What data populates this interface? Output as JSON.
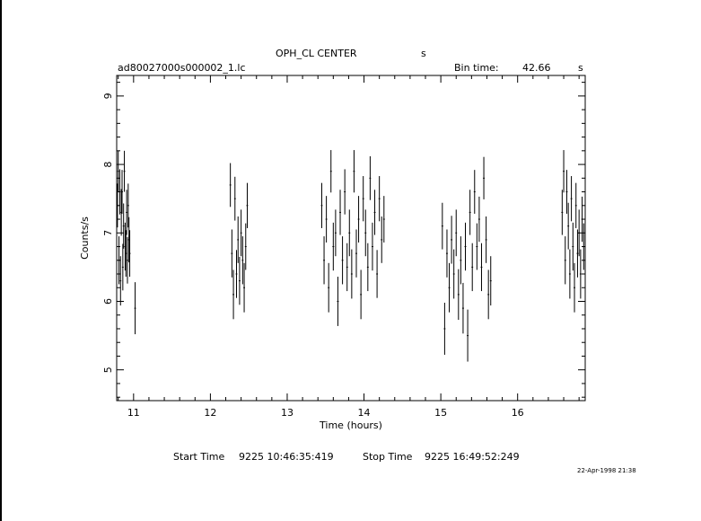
{
  "header": {
    "title_text": "OPH_CL CENTER",
    "title_suffix": "s",
    "file_name": "ad80027000s000002_1.lc",
    "bin_label": "Bin time:",
    "bin_value": "42.66",
    "bin_unit": "s"
  },
  "footer": {
    "start_label": "Start Time",
    "start_value": "9225  10:46:35:419",
    "stop_label": "Stop Time",
    "stop_value": "9225  16:49:52:249",
    "timestamp": "22-Apr-1998 21:38"
  },
  "colors": {
    "ink": "#000000",
    "background": "#ffffff"
  },
  "chart_data": {
    "type": "scatter",
    "xlabel": "Time (hours)",
    "ylabel": "Counts/s",
    "xlim": [
      10.78,
      16.88
    ],
    "ylim": [
      4.55,
      9.3
    ],
    "xticks": [
      11,
      12,
      13,
      14,
      15,
      16
    ],
    "yticks": [
      5,
      6,
      7,
      8,
      9
    ],
    "grid": false,
    "error_bars": true,
    "segments": [
      {
        "x": [
          10.79,
          10.8,
          10.81,
          10.82,
          10.83,
          10.84,
          10.85,
          10.86,
          10.87,
          10.88,
          10.89,
          10.9,
          10.91,
          10.92,
          10.93,
          10.94,
          10.95,
          11.02
        ],
        "y": [
          7.4,
          7.9,
          6.6,
          7.6,
          6.3,
          7.3,
          7.6,
          6.5,
          7.1,
          7.9,
          6.8,
          6.7,
          7.3,
          6.6,
          7.4,
          6.9,
          6.7,
          5.9
        ],
        "err": [
          0.32,
          0.3,
          0.35,
          0.33,
          0.36,
          0.34,
          0.32,
          0.34,
          0.33,
          0.3,
          0.35,
          0.34,
          0.33,
          0.34,
          0.32,
          0.33,
          0.34,
          0.38
        ]
      },
      {
        "x": [
          12.26,
          12.28,
          12.3,
          12.32,
          12.34,
          12.36,
          12.38,
          12.4,
          12.42,
          12.44,
          12.46,
          12.48
        ],
        "y": [
          7.7,
          6.7,
          6.1,
          7.5,
          6.4,
          6.9,
          6.3,
          7.0,
          6.6,
          6.2,
          6.8,
          7.4
        ],
        "err": [
          0.32,
          0.35,
          0.36,
          0.32,
          0.35,
          0.34,
          0.35,
          0.34,
          0.35,
          0.36,
          0.34,
          0.33
        ]
      },
      {
        "x": [
          13.45,
          13.48,
          13.51,
          13.54,
          13.57,
          13.6,
          13.63,
          13.66,
          13.69,
          13.72,
          13.75,
          13.78,
          13.81,
          13.84,
          13.87,
          13.9,
          13.93,
          13.96,
          13.99,
          14.02,
          14.05,
          14.08,
          14.11,
          14.14,
          14.17,
          14.2,
          14.23,
          14.26
        ],
        "y": [
          7.4,
          6.6,
          7.2,
          6.2,
          7.9,
          6.8,
          7.0,
          6.0,
          7.3,
          6.6,
          7.6,
          6.5,
          7.0,
          6.4,
          7.9,
          6.7,
          7.2,
          6.1,
          7.5,
          7.0,
          6.5,
          7.8,
          6.8,
          7.3,
          6.4,
          7.5,
          6.9,
          7.2
        ],
        "err": [
          0.33,
          0.35,
          0.34,
          0.36,
          0.31,
          0.35,
          0.34,
          0.36,
          0.33,
          0.35,
          0.33,
          0.35,
          0.34,
          0.36,
          0.31,
          0.35,
          0.34,
          0.36,
          0.33,
          0.34,
          0.35,
          0.32,
          0.35,
          0.33,
          0.35,
          0.33,
          0.34,
          0.34
        ]
      },
      {
        "x": [
          15.02,
          15.05,
          15.08,
          15.11,
          15.14,
          15.17,
          15.2,
          15.23,
          15.26,
          15.29,
          15.32,
          15.35,
          15.38,
          15.41,
          15.44,
          15.47,
          15.5,
          15.53,
          15.56,
          15.59,
          15.62,
          15.65
        ],
        "y": [
          7.1,
          5.6,
          6.7,
          6.2,
          6.9,
          6.4,
          7.0,
          6.1,
          6.6,
          5.9,
          6.8,
          5.5,
          7.3,
          6.5,
          7.6,
          6.8,
          7.2,
          6.5,
          7.8,
          6.9,
          6.1,
          6.3
        ],
        "err": [
          0.34,
          0.38,
          0.35,
          0.36,
          0.35,
          0.36,
          0.34,
          0.37,
          0.35,
          0.37,
          0.35,
          0.38,
          0.33,
          0.35,
          0.32,
          0.34,
          0.33,
          0.35,
          0.31,
          0.34,
          0.36,
          0.36
        ]
      },
      {
        "x": [
          16.58,
          16.6,
          16.62,
          16.64,
          16.66,
          16.68,
          16.7,
          16.72,
          16.74,
          16.76,
          16.78,
          16.8,
          16.82,
          16.84,
          16.86
        ],
        "y": [
          7.3,
          7.9,
          6.6,
          7.6,
          7.1,
          6.4,
          7.5,
          6.8,
          6.2,
          7.4,
          6.7,
          7.0,
          6.4,
          7.2,
          6.8
        ],
        "err": [
          0.33,
          0.31,
          0.35,
          0.32,
          0.34,
          0.36,
          0.33,
          0.35,
          0.36,
          0.33,
          0.35,
          0.34,
          0.36,
          0.33,
          0.34
        ]
      }
    ]
  }
}
